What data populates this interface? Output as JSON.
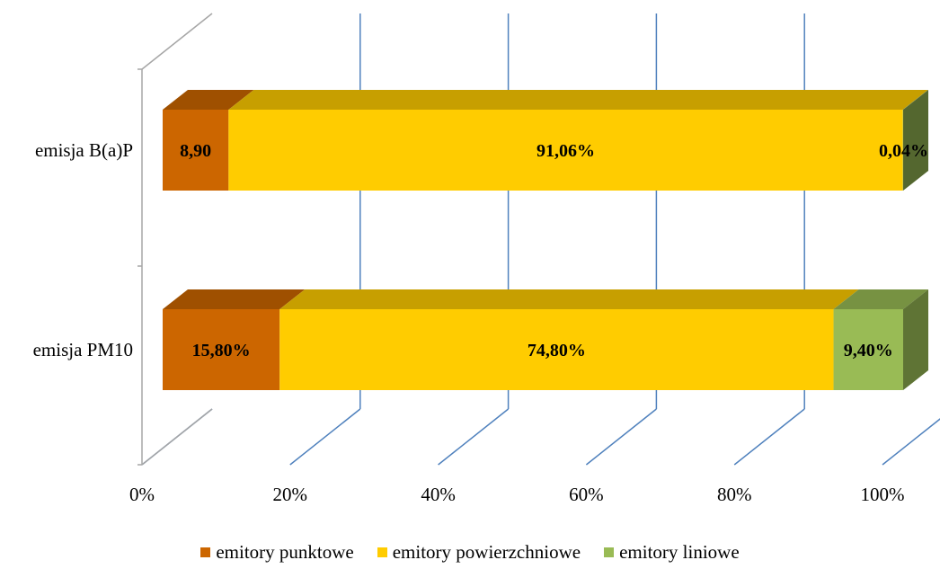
{
  "chart_data": {
    "type": "bar",
    "orientation": "horizontal",
    "stacked": "100%",
    "three_d": true,
    "categories": [
      "emisja B(a)P",
      "emisja PM10"
    ],
    "series": [
      {
        "name": "emitory punktowe",
        "color": "#CC6600",
        "values": [
          8.9,
          15.8
        ],
        "labels": [
          "8,90",
          "15,80%"
        ]
      },
      {
        "name": "emitory powierzchniowe",
        "color": "#FFCC00",
        "values": [
          91.06,
          74.8
        ],
        "labels": [
          "91,06%",
          "74,80%"
        ]
      },
      {
        "name": "emitory liniowe",
        "color": "#99BB55",
        "values": [
          0.04,
          9.4
        ],
        "labels": [
          "0,04%",
          "9,40%"
        ]
      }
    ],
    "x_ticks": [
      "0%",
      "20%",
      "40%",
      "60%",
      "80%",
      "100%"
    ],
    "xlim": [
      0,
      100
    ],
    "grid": true,
    "legend_position": "bottom"
  }
}
